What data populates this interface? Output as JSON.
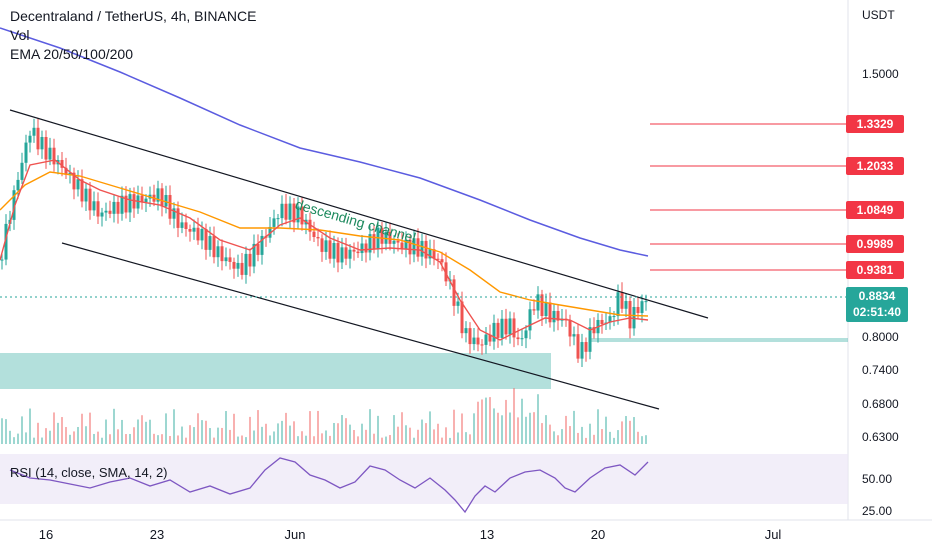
{
  "legend": {
    "symbol_line": "Decentraland / TetherUS, 4h, BINANCE",
    "vol_label": "Vol",
    "ema_label": "EMA 20/50/100/200",
    "rsi_label": "RSI (14, close, SMA, 14, 2)"
  },
  "axis": {
    "currency": "USDT",
    "price_ticks": [
      "1.5000",
      "0.8000",
      "0.7400",
      "0.6800",
      "0.6300"
    ],
    "rsi_ticks": [
      "50.00",
      "25.00"
    ],
    "time_ticks": [
      "16",
      "23",
      "Jun",
      "13",
      "20",
      "Jul"
    ]
  },
  "resistance_levels": [
    "1.3329",
    "1.2033",
    "1.0849",
    "0.9989",
    "0.9381"
  ],
  "current_price": {
    "price": "0.8834",
    "countdown": "02:51:40"
  },
  "annotation": "descending channel",
  "colors": {
    "up": "#26a69a",
    "down": "#ef5350",
    "level_line": "#f23645",
    "ema_fast": "#ef5350",
    "ema_mid": "#ff9800",
    "ema_slow": "#5b5ce0",
    "support_zone": "#26a69a",
    "rsi_line": "#7e57c2",
    "rsi_band": "#ede7f6"
  }
}
